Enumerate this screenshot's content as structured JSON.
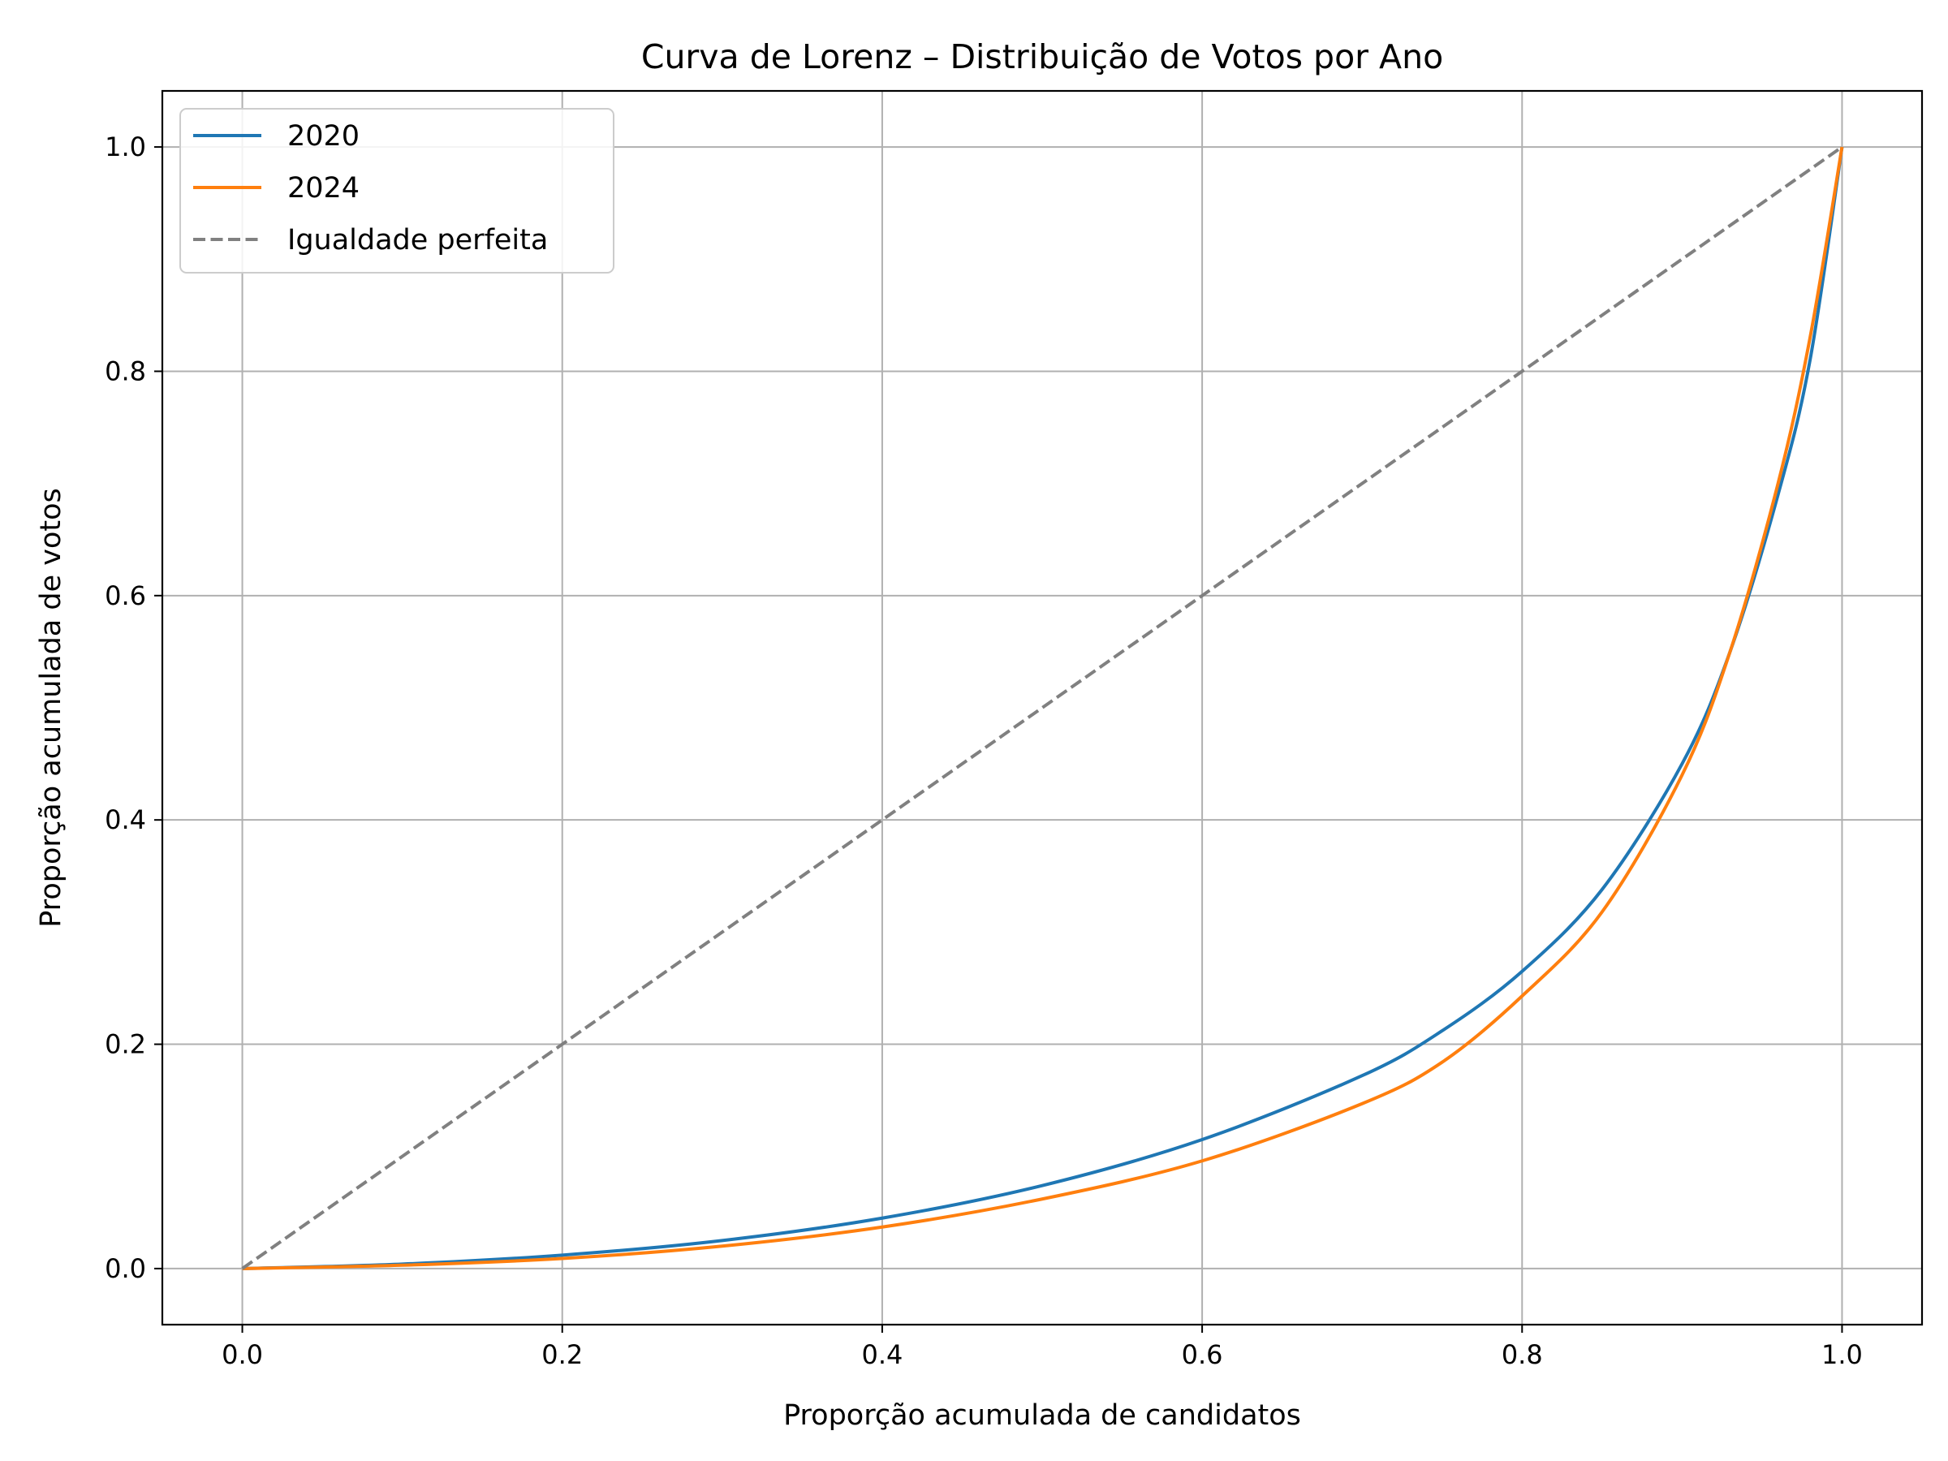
{
  "chart_data": {
    "type": "line",
    "title": "Curva de Lorenz – Distribuição de Votos por Ano",
    "xlabel": "Proporção acumulada de candidatos",
    "ylabel": "Proporção acumulada de votos",
    "xlim": [
      -0.05,
      1.05
    ],
    "ylim": [
      -0.05,
      1.05
    ],
    "xticks": [
      "0.0",
      "0.2",
      "0.4",
      "0.6",
      "0.8",
      "1.0"
    ],
    "yticks": [
      "0.0",
      "0.2",
      "0.4",
      "0.6",
      "0.8",
      "1.0"
    ],
    "grid": true,
    "legend_position": "top-left",
    "series": [
      {
        "name": "2020",
        "color": "#1f77b4",
        "style": "solid",
        "x": [
          0.0,
          0.1,
          0.2,
          0.3,
          0.4,
          0.5,
          0.6,
          0.7,
          0.75,
          0.8,
          0.85,
          0.9,
          0.93,
          0.96,
          0.98,
          1.0
        ],
        "y": [
          0.0,
          0.004,
          0.012,
          0.025,
          0.045,
          0.074,
          0.115,
          0.172,
          0.212,
          0.265,
          0.338,
          0.45,
          0.55,
          0.69,
          0.81,
          1.0
        ]
      },
      {
        "name": "2024",
        "color": "#ff7f0e",
        "style": "solid",
        "x": [
          0.0,
          0.1,
          0.2,
          0.3,
          0.4,
          0.5,
          0.6,
          0.7,
          0.75,
          0.8,
          0.85,
          0.9,
          0.93,
          0.96,
          0.98,
          1.0
        ],
        "y": [
          0.0,
          0.003,
          0.009,
          0.02,
          0.037,
          0.062,
          0.096,
          0.147,
          0.184,
          0.243,
          0.318,
          0.44,
          0.55,
          0.7,
          0.83,
          1.0
        ]
      },
      {
        "name": "Igualdade perfeita",
        "color": "#808080",
        "style": "dashed",
        "x": [
          0.0,
          1.0
        ],
        "y": [
          0.0,
          1.0
        ]
      }
    ]
  }
}
